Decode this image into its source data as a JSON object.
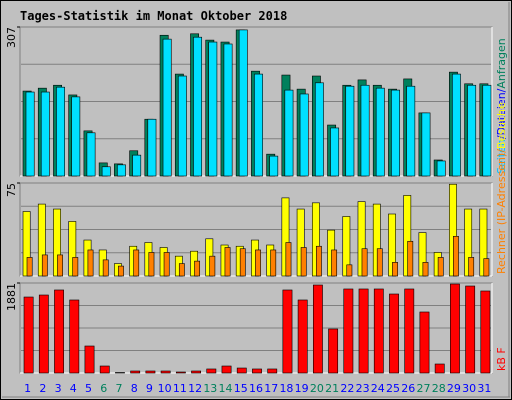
{
  "chart_data": {
    "type": "bar",
    "title": "Tages-Statistik im Monat Oktober 2018",
    "categories": [
      "1",
      "2",
      "3",
      "4",
      "5",
      "6",
      "7",
      "8",
      "9",
      "10",
      "11",
      "12",
      "13",
      "14",
      "15",
      "16",
      "17",
      "18",
      "19",
      "20",
      "21",
      "22",
      "23",
      "24",
      "25",
      "26",
      "27",
      "28",
      "29",
      "30",
      "31"
    ],
    "label_color": "#0000ff",
    "weekend_indices": [
      5,
      6,
      12,
      13,
      19,
      20,
      26,
      27
    ],
    "weekend_color": "#00805c",
    "panels": [
      {
        "ylim": [
          0,
          307
        ],
        "yticks": [
          307
        ],
        "side_label": [
          {
            "text": "Seiten",
            "color": "#00c0ff"
          },
          {
            "text": "/",
            "color": "#0000ff"
          },
          {
            "text": "Dateien",
            "color": "#0000ff"
          },
          {
            "text": "/",
            "color": "#0000ff"
          },
          {
            "text": "Anfragen",
            "color": "#00805c"
          }
        ],
        "series": [
          {
            "name": "Anfragen",
            "color": "#00805c",
            "values": [
              175,
              181,
              187,
              167,
              93,
              27,
              25,
              52,
              117,
              290,
              210,
              293,
              280,
              276,
              301,
              216,
              45,
              208,
              179,
              206,
              105,
              187,
              198,
              187,
              179,
              200,
              130,
              33,
              214,
              190,
              190
            ]
          },
          {
            "name": "Dateien",
            "color": "#00e0ff",
            "values": [
              173,
              173,
              183,
              163,
              89,
              19,
              23,
              43,
              117,
              282,
              206,
              286,
              276,
              272,
              301,
              210,
              41,
              177,
              169,
              192,
              99,
              185,
              187,
              181,
              177,
              185,
              130,
              31,
              210,
              187,
              187
            ]
          }
        ]
      },
      {
        "ylim": [
          0,
          75
        ],
        "yticks": [
          75
        ],
        "side_label": [
          {
            "text": "Rechner (IP-Adressen)",
            "color": "#ff8000"
          },
          {
            "text": "/",
            "color": "#ff8000"
          },
          {
            "text": "Besuche",
            "color": "#ffff00"
          }
        ],
        "series": [
          {
            "name": "Besuche",
            "color": "#ffff00",
            "values": [
              52,
              58,
              54,
              44,
              29,
              21,
              10,
              24,
              27,
              23,
              16,
              20,
              30,
              25,
              24,
              29,
              25,
              63,
              54,
              59,
              37,
              48,
              60,
              58,
              50,
              65,
              35,
              19,
              74,
              54,
              54
            ]
          },
          {
            "name": "Rechner (IP-Adressen)",
            "color": "#ff8000",
            "values": [
              15,
              17,
              17,
              15,
              21,
              13,
              8,
              21,
              19,
              19,
              10,
              12,
              16,
              23,
              22,
              21,
              21,
              27,
              23,
              24,
              21,
              9,
              22,
              22,
              11,
              28,
              11,
              15,
              32,
              15,
              14
            ]
          }
        ]
      },
      {
        "ylim": [
          0,
          1881
        ],
        "yticks": [
          1881
        ],
        "side_label": [
          {
            "text": "kB F",
            "color": "#ff0000"
          }
        ],
        "series": [
          {
            "name": "kB F",
            "color": "#ff0000",
            "values": [
              1588,
              1630,
              1735,
              1526,
              564,
              146,
              10,
              42,
              42,
              42,
              21,
              42,
              84,
              146,
              104,
              84,
              84,
              1735,
              1526,
              1839,
              920,
              1756,
              1756,
              1756,
              1651,
              1756,
              1275,
              188,
              1860,
              1818,
              1714
            ]
          }
        ]
      }
    ]
  }
}
